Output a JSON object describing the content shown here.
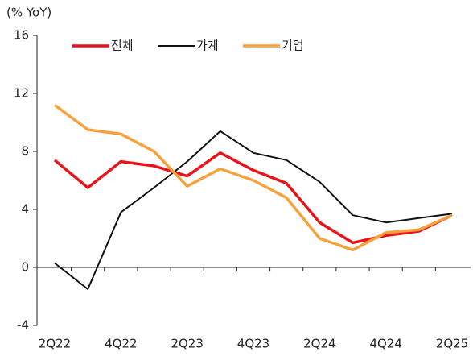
{
  "chart_data": {
    "type": "line",
    "y_label": "(% YoY)",
    "categories": [
      "2Q22",
      null,
      "4Q22",
      null,
      "2Q23",
      null,
      "4Q23",
      null,
      "2Q24",
      null,
      "4Q24",
      null,
      "2Q25"
    ],
    "series": [
      {
        "name": "전체",
        "color": "#e8141a",
        "values": [
          7.4,
          5.5,
          7.3,
          7.0,
          6.3,
          7.9,
          6.7,
          5.8,
          3.1,
          1.7,
          2.2,
          2.5,
          3.6
        ]
      },
      {
        "name": "가계",
        "color": "#111111",
        "values": [
          0.3,
          -1.5,
          3.8,
          5.5,
          7.3,
          9.4,
          7.9,
          7.4,
          5.9,
          3.6,
          3.1,
          3.4,
          3.7
        ]
      },
      {
        "name": "기업",
        "color": "#f7a13c",
        "values": [
          11.2,
          9.5,
          9.2,
          8.0,
          5.6,
          6.8,
          6.0,
          4.8,
          2.0,
          1.2,
          2.4,
          2.6,
          3.6
        ]
      }
    ],
    "ylim": [
      -4,
      16
    ],
    "yticks": [
      -4,
      0,
      4,
      8,
      12,
      16
    ],
    "legend": "top"
  }
}
